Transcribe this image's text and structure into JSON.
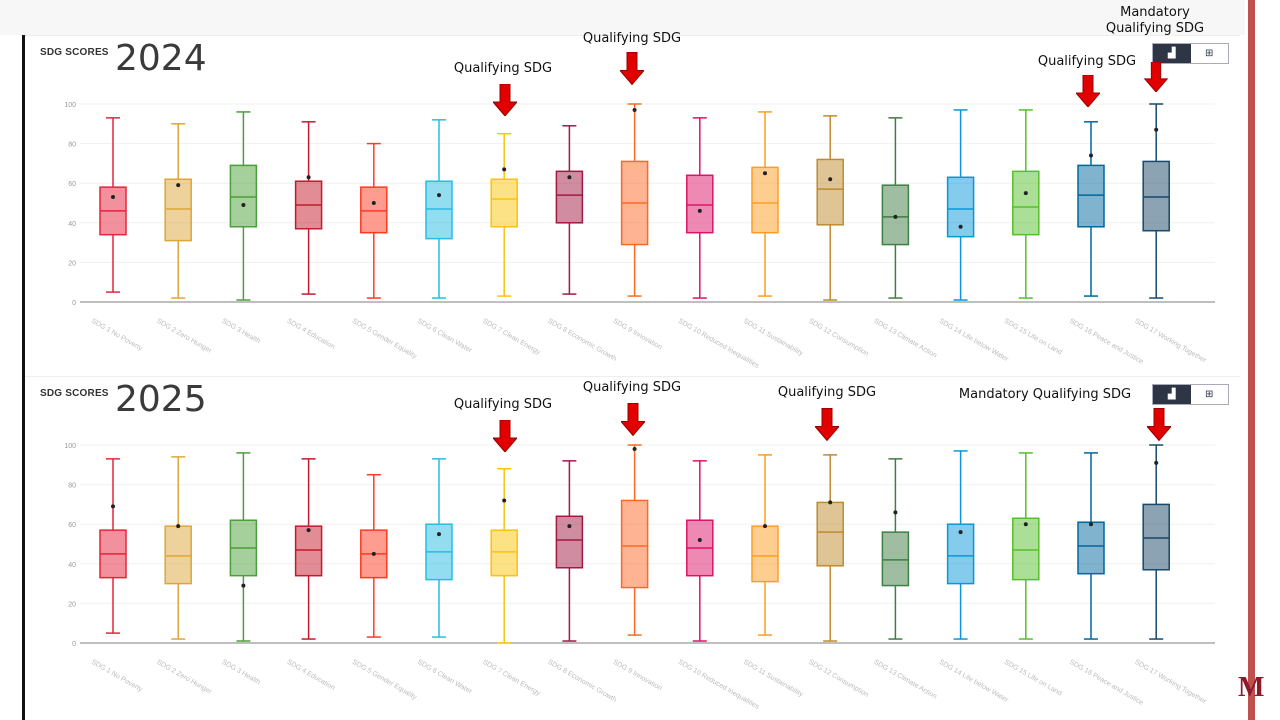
{
  "colors": {
    "arrow": "#e00000",
    "sdg": [
      "#e5243b",
      "#dda63a",
      "#4c9f38",
      "#c5192d",
      "#ff3a21",
      "#26bde2",
      "#fcc30b",
      "#a21942",
      "#fd6925",
      "#dd1367",
      "#fd9d24",
      "#bf8b2e",
      "#3f7e44",
      "#0a97d9",
      "#56c02b",
      "#00689d",
      "#19486a"
    ]
  },
  "toggle": {
    "chart_icon": "chart-icon",
    "table_icon": "table-icon"
  },
  "logo_text": "M",
  "annotations": {
    "qualifying": "Qualifying SDG",
    "mandatory_line1": "Mandatory",
    "mandatory_line2": "Qualifying SDG"
  },
  "chart_data": [
    {
      "type": "box",
      "title": "SDG SCORES",
      "year": "2024",
      "ylim": [
        0,
        100
      ],
      "yticks": [
        "0",
        "20",
        "40",
        "60",
        "80",
        "100"
      ],
      "categories": [
        "SDG 1 No Poverty",
        "SDG 2 Zero Hunger",
        "SDG 3 Health",
        "SDG 4 Education",
        "SDG 5 Gender Equality",
        "SDG 6 Clean Water",
        "SDG 7 Clean Energy",
        "SDG 8 Economic Growth",
        "SDG 9 Innovation",
        "SDG 10 Reduced Inequalities",
        "SDG 11 Sustainability",
        "SDG 12 Consumption",
        "SDG 13 Climate Action",
        "SDG 14 Life below Water",
        "SDG 15 Life on Land",
        "SDG 16 Peace and Justice",
        "SDG 17 Working Together"
      ],
      "boxes": [
        [
          5,
          34,
          46,
          58,
          93,
          53
        ],
        [
          2,
          31,
          47,
          62,
          90,
          59
        ],
        [
          1,
          38,
          53,
          69,
          96,
          49
        ],
        [
          4,
          37,
          49,
          61,
          91,
          63
        ],
        [
          2,
          35,
          46,
          58,
          80,
          50
        ],
        [
          2,
          32,
          47,
          61,
          92,
          54
        ],
        [
          3,
          38,
          52,
          62,
          85,
          67
        ],
        [
          4,
          40,
          54,
          66,
          89,
          63
        ],
        [
          3,
          29,
          50,
          71,
          100,
          97
        ],
        [
          2,
          35,
          49,
          64,
          93,
          46
        ],
        [
          3,
          35,
          50,
          68,
          96,
          65
        ],
        [
          1,
          39,
          57,
          72,
          94,
          62
        ],
        [
          2,
          29,
          43,
          59,
          93,
          43
        ],
        [
          1,
          33,
          47,
          63,
          97,
          38
        ],
        [
          2,
          34,
          48,
          66,
          97,
          55
        ],
        [
          3,
          38,
          54,
          69,
          91,
          74
        ],
        [
          2,
          36,
          53,
          71,
          100,
          87
        ]
      ],
      "box_fields": [
        "min",
        "q1",
        "median",
        "q3",
        "max",
        "mean"
      ],
      "qualifying": [
        6,
        8,
        15
      ],
      "mandatory": [
        16
      ]
    },
    {
      "type": "box",
      "title": "SDG SCORES",
      "year": "2025",
      "ylim": [
        0,
        100
      ],
      "yticks": [
        "0",
        "20",
        "40",
        "60",
        "80",
        "100"
      ],
      "categories": [
        "SDG 1 No Poverty",
        "SDG 2 Zero Hunger",
        "SDG 3 Health",
        "SDG 4 Education",
        "SDG 5 Gender Equality",
        "SDG 6 Clean Water",
        "SDG 7 Clean Energy",
        "SDG 8 Economic Growth",
        "SDG 9 Innovation",
        "SDG 10 Reduced Inequalities",
        "SDG 11 Sustainability",
        "SDG 12 Consumption",
        "SDG 13 Climate Action",
        "SDG 14 Life below Water",
        "SDG 15 Life on Land",
        "SDG 16 Peace and Justice",
        "SDG 17 Working Together"
      ],
      "boxes": [
        [
          5,
          33,
          45,
          57,
          93,
          69
        ],
        [
          2,
          30,
          44,
          59,
          94,
          59
        ],
        [
          1,
          34,
          48,
          62,
          96,
          29
        ],
        [
          2,
          34,
          47,
          59,
          93,
          57
        ],
        [
          3,
          33,
          45,
          57,
          85,
          45
        ],
        [
          3,
          32,
          46,
          60,
          93,
          55
        ],
        [
          0,
          34,
          46,
          57,
          88,
          72
        ],
        [
          1,
          38,
          52,
          64,
          92,
          59
        ],
        [
          4,
          28,
          49,
          72,
          100,
          98
        ],
        [
          1,
          34,
          48,
          62,
          92,
          52
        ],
        [
          4,
          31,
          44,
          59,
          95,
          59
        ],
        [
          1,
          39,
          56,
          71,
          95,
          71
        ],
        [
          2,
          29,
          42,
          56,
          93,
          66
        ],
        [
          2,
          30,
          44,
          60,
          97,
          56
        ],
        [
          2,
          32,
          47,
          63,
          96,
          60
        ],
        [
          2,
          35,
          49,
          61,
          96,
          60
        ],
        [
          2,
          37,
          53,
          70,
          100,
          91
        ]
      ],
      "box_fields": [
        "min",
        "q1",
        "median",
        "q3",
        "max",
        "mean"
      ],
      "qualifying": [
        6,
        8,
        11
      ],
      "mandatory": [
        16
      ]
    }
  ]
}
